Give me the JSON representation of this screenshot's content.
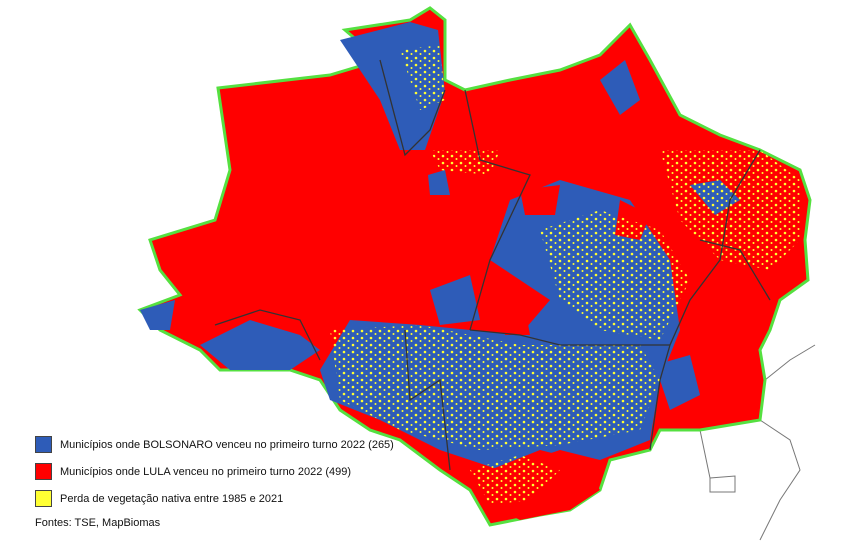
{
  "legend": {
    "items": [
      {
        "label": "Municípios onde BOLSONARO venceu no primeiro turno 2022 (265)",
        "color": "#2e5cb8"
      },
      {
        "label": "Municípios onde LULA venceu no primeiro turno 2022   (499)",
        "color": "#ff0000"
      },
      {
        "label": "Perda de vegetação nativa entre 1985 e 2021",
        "color": "#ffff33"
      }
    ]
  },
  "source": "Fontes: TSE, MapBiomas"
}
